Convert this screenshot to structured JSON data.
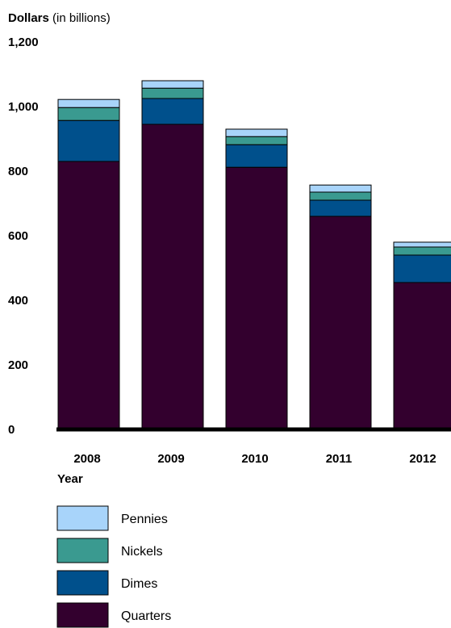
{
  "chart_data": {
    "type": "bar",
    "stacked": true,
    "title": "",
    "ylabel_bold": "Dollars",
    "ylabel_rest": " (in billions)",
    "xlabel": "Year",
    "ylim": [
      0,
      1200
    ],
    "y_ticks": [
      "0",
      "200",
      "400",
      "600",
      "800",
      "1,000",
      "1,200"
    ],
    "y_tick_values": [
      0,
      200,
      400,
      600,
      800,
      1000,
      1200
    ],
    "grid": false,
    "legend_position": "bottom-left",
    "categories": [
      "2008",
      "2009",
      "2010",
      "2011",
      "2012"
    ],
    "series": [
      {
        "name": "Quarters",
        "color": "#33002e",
        "values": [
          830,
          945,
          812,
          660,
          455
        ]
      },
      {
        "name": "Dimes",
        "color": "#00508c",
        "values": [
          127,
          80,
          70,
          50,
          85
        ]
      },
      {
        "name": "Nickels",
        "color": "#3a9a90",
        "values": [
          40,
          32,
          25,
          25,
          25
        ]
      },
      {
        "name": "Pennies",
        "color": "#a8d4fa",
        "values": [
          25,
          23,
          23,
          22,
          15
        ]
      }
    ],
    "legend_order": [
      "Pennies",
      "Nickels",
      "Dimes",
      "Quarters"
    ]
  }
}
